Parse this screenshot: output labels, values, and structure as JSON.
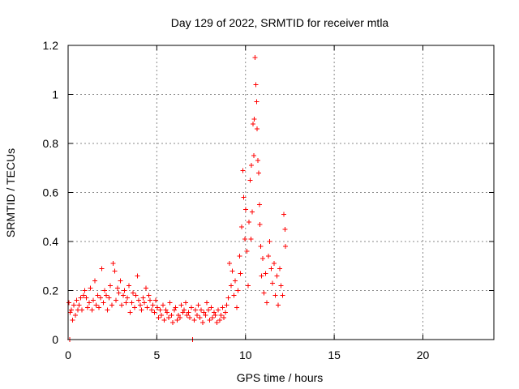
{
  "chart_data": {
    "type": "scatter",
    "title": "Day 129 of 2022, SRMTID for receiver mtla",
    "xlabel": "GPS time / hours",
    "ylabel": "SRMTID / TECUs",
    "xlim": [
      0,
      24
    ],
    "ylim": [
      0,
      1.2
    ],
    "x_ticks": [
      0,
      5,
      10,
      15,
      20
    ],
    "x_tick_labels": [
      "0",
      "5",
      "10",
      "15",
      "20"
    ],
    "y_ticks": [
      0,
      0.2,
      0.4,
      0.6,
      0.8,
      1.0,
      1.2
    ],
    "y_tick_labels": [
      "0",
      "0.2",
      "0.4",
      "0.6",
      "0.8",
      "1",
      "1.2"
    ],
    "grid": true,
    "marker": "plus",
    "colors": {
      "series": "#ff0000",
      "axis": "#000000",
      "grid": "#8a8a8a"
    },
    "series": [
      {
        "name": "SRMTID",
        "points": [
          [
            0.05,
            0.15
          ],
          [
            0.08,
            0.0
          ],
          [
            0.12,
            0.11
          ],
          [
            0.18,
            0.12
          ],
          [
            0.25,
            0.08
          ],
          [
            0.32,
            0.14
          ],
          [
            0.4,
            0.1
          ],
          [
            0.48,
            0.16
          ],
          [
            0.55,
            0.12
          ],
          [
            0.62,
            0.14
          ],
          [
            0.7,
            0.17
          ],
          [
            0.78,
            0.12
          ],
          [
            0.86,
            0.18
          ],
          [
            0.94,
            0.2
          ],
          [
            1.02,
            0.17
          ],
          [
            1.1,
            0.13
          ],
          [
            1.18,
            0.15
          ],
          [
            1.26,
            0.21
          ],
          [
            1.34,
            0.12
          ],
          [
            1.42,
            0.16
          ],
          [
            1.5,
            0.24
          ],
          [
            1.58,
            0.14
          ],
          [
            1.66,
            0.18
          ],
          [
            1.74,
            0.13
          ],
          [
            1.82,
            0.17
          ],
          [
            1.9,
            0.29
          ],
          [
            1.98,
            0.15
          ],
          [
            2.06,
            0.2
          ],
          [
            2.14,
            0.18
          ],
          [
            2.22,
            0.12
          ],
          [
            2.3,
            0.17
          ],
          [
            2.38,
            0.22
          ],
          [
            2.46,
            0.14
          ],
          [
            2.54,
            0.31
          ],
          [
            2.62,
            0.28
          ],
          [
            2.7,
            0.16
          ],
          [
            2.78,
            0.21
          ],
          [
            2.86,
            0.19
          ],
          [
            2.94,
            0.24
          ],
          [
            3.02,
            0.14
          ],
          [
            3.1,
            0.18
          ],
          [
            3.18,
            0.2
          ],
          [
            3.26,
            0.15
          ],
          [
            3.34,
            0.17
          ],
          [
            3.42,
            0.22
          ],
          [
            3.5,
            0.11
          ],
          [
            3.58,
            0.15
          ],
          [
            3.66,
            0.19
          ],
          [
            3.74,
            0.13
          ],
          [
            3.82,
            0.18
          ],
          [
            3.9,
            0.26
          ],
          [
            3.98,
            0.16
          ],
          [
            4.06,
            0.14
          ],
          [
            4.14,
            0.12
          ],
          [
            4.22,
            0.17
          ],
          [
            4.3,
            0.15
          ],
          [
            4.38,
            0.21
          ],
          [
            4.46,
            0.13
          ],
          [
            4.54,
            0.18
          ],
          [
            4.62,
            0.16
          ],
          [
            4.7,
            0.12
          ],
          [
            4.78,
            0.14
          ],
          [
            4.86,
            0.11
          ],
          [
            4.94,
            0.16
          ],
          [
            5.02,
            0.13
          ],
          [
            5.1,
            0.09
          ],
          [
            5.18,
            0.12
          ],
          [
            5.26,
            0.1
          ],
          [
            5.34,
            0.14
          ],
          [
            5.42,
            0.08
          ],
          [
            5.5,
            0.12
          ],
          [
            5.58,
            0.11
          ],
          [
            5.66,
            0.09
          ],
          [
            5.74,
            0.15
          ],
          [
            5.82,
            0.1
          ],
          [
            5.9,
            0.07
          ],
          [
            5.98,
            0.12
          ],
          [
            6.06,
            0.13
          ],
          [
            6.14,
            0.08
          ],
          [
            6.22,
            0.1
          ],
          [
            6.3,
            0.09
          ],
          [
            6.38,
            0.14
          ],
          [
            6.46,
            0.11
          ],
          [
            6.54,
            0.12
          ],
          [
            6.62,
            0.15
          ],
          [
            6.7,
            0.1
          ],
          [
            6.78,
            0.11
          ],
          [
            6.86,
            0.09
          ],
          [
            6.94,
            0.13
          ],
          [
            7.02,
            0.0
          ],
          [
            7.1,
            0.08
          ],
          [
            7.18,
            0.12
          ],
          [
            7.26,
            0.1
          ],
          [
            7.34,
            0.14
          ],
          [
            7.42,
            0.09
          ],
          [
            7.5,
            0.12
          ],
          [
            7.58,
            0.07
          ],
          [
            7.66,
            0.11
          ],
          [
            7.74,
            0.1
          ],
          [
            7.82,
            0.15
          ],
          [
            7.9,
            0.12
          ],
          [
            7.98,
            0.08
          ],
          [
            8.06,
            0.13
          ],
          [
            8.14,
            0.09
          ],
          [
            8.22,
            0.11
          ],
          [
            8.3,
            0.1
          ],
          [
            8.38,
            0.07
          ],
          [
            8.46,
            0.12
          ],
          [
            8.54,
            0.08
          ],
          [
            8.62,
            0.1
          ],
          [
            8.7,
            0.13
          ],
          [
            8.78,
            0.09
          ],
          [
            8.86,
            0.11
          ],
          [
            8.94,
            0.14
          ],
          [
            9.02,
            0.17
          ],
          [
            9.1,
            0.31
          ],
          [
            9.18,
            0.22
          ],
          [
            9.26,
            0.28
          ],
          [
            9.34,
            0.18
          ],
          [
            9.42,
            0.24
          ],
          [
            9.5,
            0.13
          ],
          [
            9.58,
            0.2
          ],
          [
            9.66,
            0.34
          ],
          [
            9.72,
            0.27
          ],
          [
            9.78,
            0.46
          ],
          [
            9.84,
            0.69
          ],
          [
            9.9,
            0.58
          ],
          [
            9.96,
            0.41
          ],
          [
            10.02,
            0.53
          ],
          [
            10.08,
            0.36
          ],
          [
            10.14,
            0.22
          ],
          [
            10.2,
            0.48
          ],
          [
            10.26,
            0.65
          ],
          [
            10.3,
            0.41
          ],
          [
            10.34,
            0.71
          ],
          [
            10.38,
            0.52
          ],
          [
            10.42,
            0.88
          ],
          [
            10.46,
            0.75
          ],
          [
            10.5,
            0.9
          ],
          [
            10.54,
            1.15
          ],
          [
            10.58,
            1.04
          ],
          [
            10.62,
            0.97
          ],
          [
            10.66,
            0.86
          ],
          [
            10.7,
            0.73
          ],
          [
            10.74,
            0.68
          ],
          [
            10.78,
            0.55
          ],
          [
            10.82,
            0.47
          ],
          [
            10.86,
            0.38
          ],
          [
            10.9,
            0.26
          ],
          [
            10.96,
            0.33
          ],
          [
            11.04,
            0.19
          ],
          [
            11.12,
            0.27
          ],
          [
            11.2,
            0.15
          ],
          [
            11.28,
            0.34
          ],
          [
            11.36,
            0.4
          ],
          [
            11.44,
            0.29
          ],
          [
            11.52,
            0.23
          ],
          [
            11.6,
            0.31
          ],
          [
            11.68,
            0.18
          ],
          [
            11.76,
            0.26
          ],
          [
            11.84,
            0.14
          ],
          [
            11.92,
            0.29
          ],
          [
            12.0,
            0.22
          ],
          [
            12.08,
            0.18
          ],
          [
            12.16,
            0.51
          ],
          [
            12.22,
            0.45
          ],
          [
            12.26,
            0.38
          ]
        ]
      }
    ]
  }
}
